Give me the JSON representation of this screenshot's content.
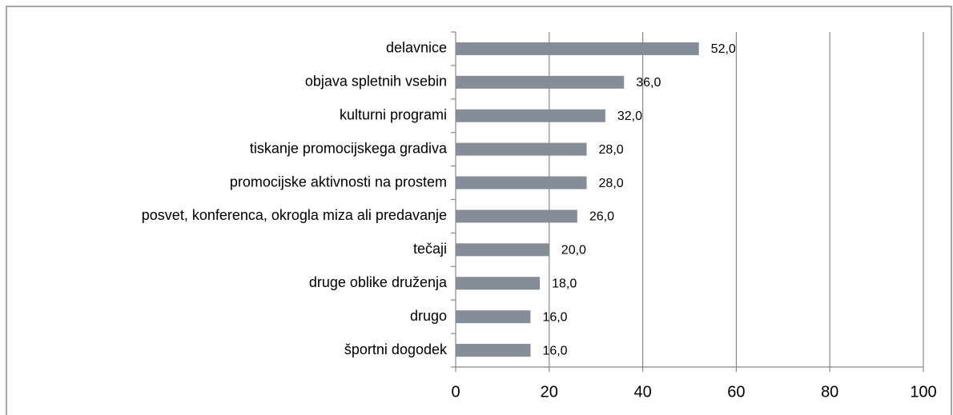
{
  "chart_data": {
    "type": "bar",
    "orientation": "horizontal",
    "categories": [
      "delavnice",
      "objava spletnih vsebin",
      "kulturni programi",
      "tiskanje promocijskega gradiva",
      "promocijske aktivnosti na prostem",
      "posvet, konferenca, okrogla miza ali predavanje",
      "tečaji",
      "druge oblike druženja",
      "drugo",
      "športni dogodek"
    ],
    "values": [
      52,
      36,
      32,
      28,
      28,
      26,
      20,
      18,
      16,
      16
    ],
    "value_labels": [
      "52,0",
      "36,0",
      "32,0",
      "28,0",
      "28,0",
      "26,0",
      "20,0",
      "18,0",
      "16,0",
      "16,0"
    ],
    "color": "#858d99",
    "xlim": [
      0,
      100
    ],
    "xticks": [
      0,
      20,
      40,
      60,
      80,
      100
    ],
    "grid": true
  }
}
